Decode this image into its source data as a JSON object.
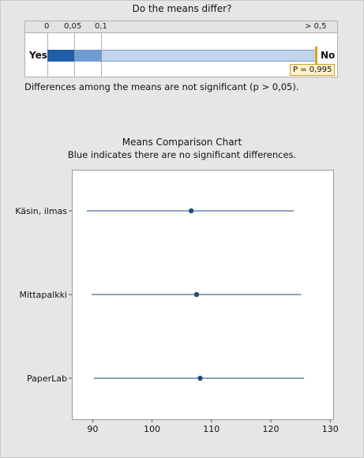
{
  "top_title": "Do the means differ?",
  "pbar": {
    "ticks": [
      "0",
      "0,05",
      "0,1",
      "> 0,5"
    ],
    "yes_label": "Yes",
    "no_label": "No",
    "p_label": "P = 0,995",
    "p_value": 0.995,
    "segment_colors": [
      "#1f5ea8",
      "#6f9bd0",
      "#c2d5ec"
    ],
    "marker_color": "#e0a020"
  },
  "significance_text": "Differences among the means are not significant (p > 0,05).",
  "chart_title": "Means Comparison Chart",
  "chart_subtitle": "Blue indicates there are no significant differences.",
  "chart_data": {
    "type": "interval",
    "title": "Means Comparison Chart",
    "subtitle": "Blue indicates there are no significant differences.",
    "categories": [
      "Käsin, ilmas",
      "Mittapalkki",
      "PaperLab"
    ],
    "means": [
      106.6,
      107.5,
      108.1
    ],
    "lower": [
      89.0,
      89.8,
      90.2
    ],
    "upper": [
      123.9,
      125.1,
      125.6
    ],
    "xlim": [
      86.5,
      130.5
    ],
    "xticks": [
      90,
      100,
      110,
      120,
      130
    ],
    "grid": false,
    "color": "#1f4e79"
  }
}
